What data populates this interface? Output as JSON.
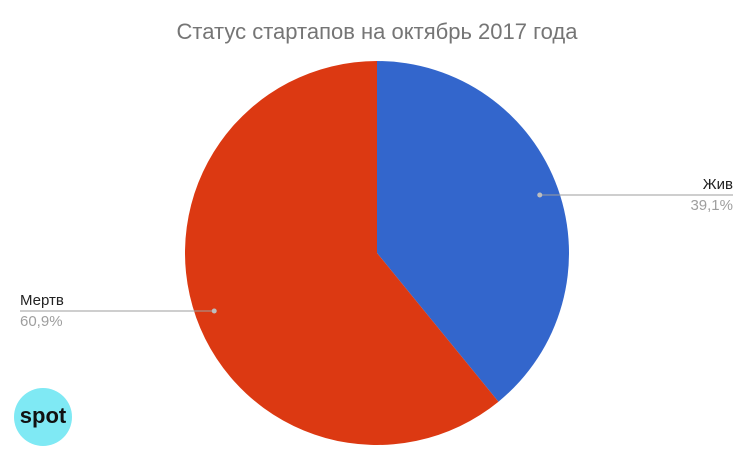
{
  "chart_data": {
    "type": "pie",
    "title": "Статус стартапов на октябрь 2017 года",
    "categories": [
      "Жив",
      "Мертв"
    ],
    "values": [
      39.1,
      60.9
    ],
    "value_labels": [
      "39,1%",
      "60,9%"
    ],
    "colors": [
      "#3366cc",
      "#dc3912"
    ]
  },
  "logo": "spot"
}
